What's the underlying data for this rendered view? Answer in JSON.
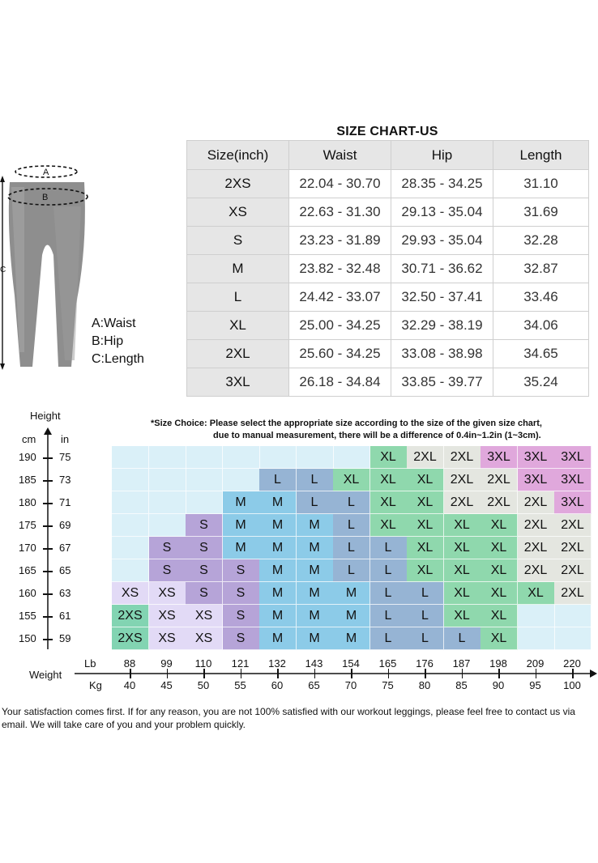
{
  "figure": {
    "markers": {
      "a": "A",
      "b": "B",
      "c": "C"
    },
    "legend": [
      "A:Waist",
      "B:Hip",
      "C:Length"
    ]
  },
  "size_chart": {
    "title": "SIZE CHART-US",
    "headers": [
      "Size(inch)",
      "Waist",
      "Hip",
      "Length"
    ],
    "rows": [
      [
        "2XS",
        "22.04 - 30.70",
        "28.35 - 34.25",
        "31.10"
      ],
      [
        "XS",
        "22.63 - 31.30",
        "29.13 - 35.04",
        "31.69"
      ],
      [
        "S",
        "23.23 - 31.89",
        "29.93 - 35.04",
        "32.28"
      ],
      [
        "M",
        "23.82 - 32.48",
        "30.71 - 36.62",
        "32.87"
      ],
      [
        "L",
        "24.42 - 33.07",
        "32.50 - 37.41",
        "33.46"
      ],
      [
        "XL",
        "25.00 - 34.25",
        "32.29 - 38.19",
        "34.06"
      ],
      [
        "2XL",
        "25.60 - 34.25",
        "33.08 - 38.98",
        "34.65"
      ],
      [
        "3XL",
        "26.18 - 34.84",
        "33.85 - 39.77",
        "35.24"
      ]
    ]
  },
  "size_guide": {
    "height_label": "Height",
    "cm_label": "cm",
    "in_label": "in",
    "heights_cm": [
      "190",
      "185",
      "180",
      "175",
      "170",
      "165",
      "160",
      "155",
      "150"
    ],
    "heights_in": [
      "75",
      "73",
      "71",
      "69",
      "67",
      "65",
      "63",
      "61",
      "59"
    ],
    "note_line1": "*Size Choice: Please select the appropriate size according to the size of the given size chart,",
    "note_line2": "due to manual measurement, there will be a difference of 0.4in~1.2in (1~3cm).",
    "weight_label": "Weight",
    "lb_label": "Lb",
    "kg_label": "Kg",
    "weights_lb": [
      "88",
      "99",
      "110",
      "121",
      "132",
      "143",
      "154",
      "165",
      "176",
      "187",
      "198",
      "209",
      "220"
    ],
    "weights_kg": [
      "40",
      "45",
      "50",
      "55",
      "60",
      "65",
      "70",
      "75",
      "80",
      "85",
      "90",
      "95",
      "100"
    ],
    "grid": [
      [
        "",
        "",
        "",
        "",
        "",
        "",
        "",
        "XL",
        "2XL",
        "2XL",
        "3XL",
        "3XL",
        "3XL"
      ],
      [
        "",
        "",
        "",
        "",
        "L",
        "L",
        "XL",
        "XL",
        "XL",
        "2XL",
        "2XL",
        "3XL",
        "3XL"
      ],
      [
        "",
        "",
        "",
        "M",
        "M",
        "L",
        "L",
        "XL",
        "XL",
        "2XL",
        "2XL",
        "2XL",
        "3XL"
      ],
      [
        "",
        "",
        "S",
        "M",
        "M",
        "M",
        "L",
        "XL",
        "XL",
        "XL",
        "XL",
        "2XL",
        "2XL"
      ],
      [
        "",
        "S",
        "S",
        "M",
        "M",
        "M",
        "L",
        "L",
        "XL",
        "XL",
        "XL",
        "2XL",
        "2XL"
      ],
      [
        "",
        "S",
        "S",
        "S",
        "M",
        "M",
        "L",
        "L",
        "XL",
        "XL",
        "XL",
        "2XL",
        "2XL"
      ],
      [
        "XS",
        "XS",
        "S",
        "S",
        "M",
        "M",
        "M",
        "L",
        "L",
        "XL",
        "XL",
        "XL",
        "2XL"
      ],
      [
        "2XS",
        "XS",
        "XS",
        "S",
        "M",
        "M",
        "M",
        "L",
        "L",
        "XL",
        "XL",
        "",
        ""
      ],
      [
        "2XS",
        "XS",
        "XS",
        "S",
        "M",
        "M",
        "M",
        "L",
        "L",
        "L",
        "XL",
        "",
        ""
      ]
    ],
    "size_colors": {
      "2XS": "#82d4b2",
      "XS": "#e2daf6",
      "S": "#b6a4d8",
      "M": "#8ccbe8",
      "L": "#96b4d4",
      "XL": "#8fd8ad",
      "2XL": "#e4e6e0",
      "3XL": "#e0a8dc"
    }
  },
  "footer": {
    "line1": "Your satisfaction comes first. If for any reason, you are not 100% satisfied with our workout leggings, please feel free to contact us via",
    "line2": "email. We will take care of you and your problem quickly."
  }
}
